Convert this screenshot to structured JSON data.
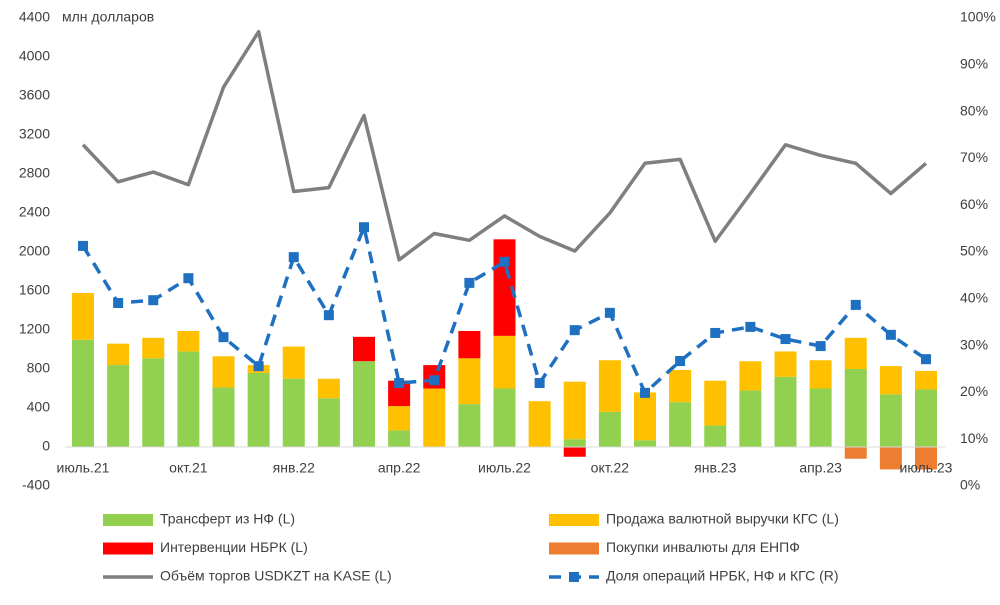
{
  "chart_data": {
    "type": "combo",
    "y_label": "млн долларов",
    "categories": [
      "июль.21",
      null,
      null,
      "окт.21",
      null,
      null,
      "янв.22",
      null,
      null,
      "апр.22",
      null,
      null,
      "июль.22",
      null,
      null,
      "окт.22",
      null,
      null,
      "янв.23",
      null,
      null,
      "апр.23",
      null,
      null,
      "июль.23"
    ],
    "ylim": [
      -400,
      4400
    ],
    "yticks": [
      -400,
      0,
      400,
      800,
      1200,
      1600,
      2000,
      2400,
      2800,
      3200,
      3600,
      4000,
      4400
    ],
    "y2lim": [
      0,
      100
    ],
    "y2ticks": [
      {
        "value": 0,
        "label": "0%"
      },
      {
        "value": 10,
        "label": "10%"
      },
      {
        "value": 20,
        "label": "20%"
      },
      {
        "value": 30,
        "label": "30%"
      },
      {
        "value": 40,
        "label": "40%"
      },
      {
        "value": 50,
        "label": "50%"
      },
      {
        "value": 60,
        "label": "60%"
      },
      {
        "value": 70,
        "label": "70%"
      },
      {
        "value": 80,
        "label": "80%"
      },
      {
        "value": 90,
        "label": "90%"
      },
      {
        "value": 100,
        "label": "100%"
      }
    ],
    "series": [
      {
        "name": "Трансферт из НФ (L)",
        "type": "bar",
        "color": "#92d050",
        "values": [
          1100,
          840,
          910,
          980,
          610,
          760,
          700,
          500,
          880,
          170,
          null,
          440,
          600,
          null,
          80,
          360,
          70,
          460,
          220,
          580,
          720,
          600,
          800,
          540,
          590
        ]
      },
      {
        "name": "Продажа валютной выручки КГС (L)",
        "type": "bar",
        "color": "#ffc000",
        "values": [
          480,
          220,
          210,
          210,
          320,
          80,
          330,
          200,
          null,
          250,
          600,
          470,
          540,
          470,
          590,
          530,
          490,
          330,
          460,
          300,
          260,
          290,
          320,
          290,
          190
        ]
      },
      {
        "name": "Интервенции НБРК (L)",
        "type": "bar",
        "color": "#ff0000",
        "values": [
          null,
          null,
          null,
          null,
          null,
          null,
          null,
          null,
          250,
          260,
          240,
          280,
          990,
          null,
          -100,
          null,
          null,
          null,
          null,
          null,
          null,
          null,
          null,
          null,
          null
        ]
      },
      {
        "name": "Покупки инвалюты для ЕНПФ",
        "type": "bar",
        "color": "#ed7d31",
        "values": [
          null,
          null,
          null,
          null,
          null,
          null,
          null,
          null,
          null,
          null,
          null,
          null,
          null,
          null,
          null,
          null,
          null,
          null,
          null,
          null,
          null,
          null,
          -120,
          -230,
          -230
        ]
      },
      {
        "name": "Объём торгов USDKZT на KASE (L)",
        "type": "line",
        "color": "#7f7f7f",
        "values": [
          3100,
          2720,
          2820,
          2690,
          3690,
          4260,
          2620,
          2660,
          3400,
          1920,
          2190,
          2120,
          2370,
          2160,
          2010,
          2400,
          2910,
          2950,
          2110,
          2600,
          3100,
          2990,
          2910,
          2600,
          2910
        ]
      },
      {
        "name": "Доля операций НРБК, НФ и КГС (R)",
        "type": "line",
        "axis": "y2",
        "dashed": true,
        "markers": true,
        "color": "#1f70c1",
        "values": [
          51.3,
          39.1,
          39.7,
          44.4,
          31.8,
          25.6,
          48.9,
          36.5,
          55.3,
          22.0,
          22.6,
          43.4,
          47.9,
          22.0,
          33.3,
          37.0,
          19.9,
          26.7,
          32.7,
          34.0,
          31.4,
          29.9,
          38.7,
          32.3,
          27.1
        ]
      }
    ]
  }
}
